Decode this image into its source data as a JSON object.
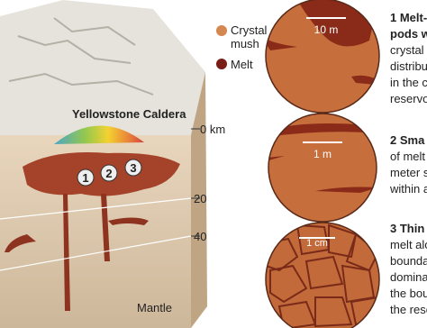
{
  "legend": {
    "mush": [
      "Crystal",
      "mush"
    ],
    "melt": "Melt"
  },
  "block": {
    "title": "Yellowstone Caldera",
    "markers": [
      "1",
      "2",
      "3"
    ],
    "depths": [
      "0 km",
      "20",
      "40"
    ],
    "base": "Mantle"
  },
  "panels": [
    {
      "scale": "10 m",
      "caption": [
        "1 Melt-",
        "pods w",
        "crystal",
        "distribu",
        "in the c",
        "reservo"
      ]
    },
    {
      "scale": "1 m",
      "caption": [
        "2 Sma",
        "of melt",
        "meter s",
        "within a"
      ]
    },
    {
      "scale": "1 cm",
      "caption": [
        "3 Thin",
        "melt alo",
        "bounda",
        "domina",
        "the bou",
        "the rese"
      ]
    }
  ]
}
